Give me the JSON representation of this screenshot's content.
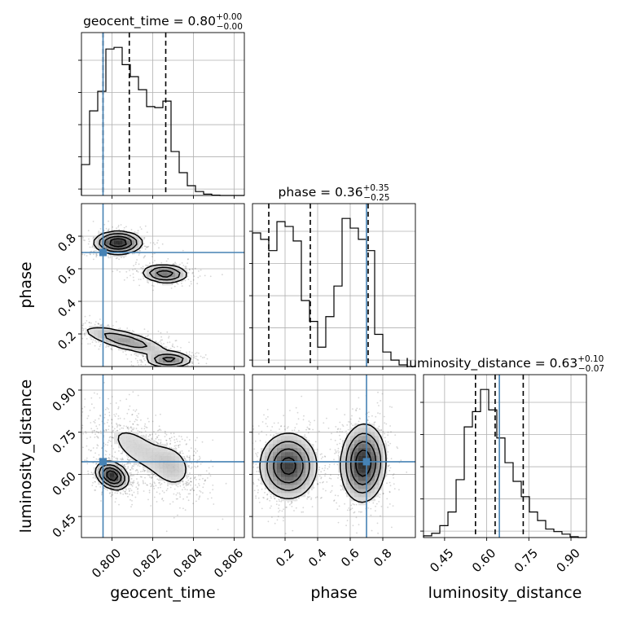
{
  "chart_data": {
    "type": "corner",
    "parameters": [
      {
        "key": "geocent_time",
        "label": "geocent_time",
        "title": {
          "name": "geocent_time",
          "median": "0.80",
          "plus": "+0.00",
          "minus": "−0.00"
        },
        "range": [
          0.7985,
          0.8065
        ],
        "ticks": [
          0.8,
          0.802,
          0.804,
          0.806
        ],
        "tick_labels": [
          "0.800",
          "0.802",
          "0.804",
          "0.806"
        ],
        "quantiles": [
          0.79956,
          0.80085,
          0.80264
        ],
        "truth": 0.79956,
        "hist": {
          "edges": [
            0.7985,
            0.7989,
            0.7993,
            0.7997,
            0.8001,
            0.8005,
            0.8009,
            0.8013,
            0.8017,
            0.8021,
            0.8025,
            0.8029,
            0.8033,
            0.8037,
            0.8041,
            0.8045,
            0.8049,
            0.8053,
            0.8057,
            0.8061,
            0.8065
          ],
          "counts": [
            0.95,
            2.6,
            3.2,
            4.5,
            4.55,
            4.02,
            3.65,
            3.25,
            2.73,
            2.7,
            2.9,
            1.35,
            0.7,
            0.3,
            0.12,
            0.04,
            0.01,
            0,
            0,
            0
          ]
        }
      },
      {
        "key": "phase",
        "label": "phase",
        "title": {
          "name": "phase",
          "median": "0.36",
          "plus": "+0.35",
          "minus": "−0.25"
        },
        "range": [
          0.0,
          1.0
        ],
        "ticks": [
          0.2,
          0.4,
          0.6,
          0.8
        ],
        "tick_labels": [
          "0.2",
          "0.4",
          "0.6",
          "0.8"
        ],
        "quantiles": [
          0.1,
          0.355,
          0.71
        ],
        "truth": 0.7,
        "hist": {
          "edges": [
            0.0,
            0.05,
            0.1,
            0.15,
            0.2,
            0.25,
            0.3,
            0.35,
            0.4,
            0.45,
            0.5,
            0.55,
            0.6,
            0.65,
            0.7,
            0.75,
            0.8,
            0.85,
            0.9,
            0.95,
            1.0
          ],
          "counts": [
            0.83,
            0.79,
            0.72,
            0.9,
            0.87,
            0.78,
            0.41,
            0.28,
            0.12,
            0.31,
            0.5,
            0.92,
            0.86,
            0.79,
            0.72,
            0.2,
            0.09,
            0.04,
            0.01,
            0
          ]
        }
      },
      {
        "key": "luminosity_distance",
        "label": "luminosity_distance",
        "title": {
          "name": "luminosity_distance",
          "median": "0.63",
          "plus": "+0.10",
          "minus": "−0.07"
        },
        "range": [
          0.375,
          0.955
        ],
        "ticks": [
          0.45,
          0.6,
          0.75,
          0.9
        ],
        "tick_labels": [
          "0.45",
          "0.60",
          "0.75",
          "0.90"
        ],
        "quantiles": [
          0.56,
          0.63,
          0.73
        ],
        "truth": 0.645,
        "hist": {
          "edges": [
            0.375,
            0.404,
            0.433,
            0.462,
            0.491,
            0.52,
            0.549,
            0.578,
            0.607,
            0.636,
            0.665,
            0.694,
            0.723,
            0.752,
            0.781,
            0.81,
            0.839,
            0.868,
            0.897,
            0.926,
            0.955
          ],
          "counts": [
            0.02,
            0.05,
            0.14,
            0.3,
            0.68,
            1.3,
            1.48,
            1.74,
            1.5,
            1.17,
            0.88,
            0.66,
            0.48,
            0.3,
            0.2,
            0.1,
            0.07,
            0.04,
            0.01,
            0
          ]
        }
      }
    ],
    "truths": {
      "geocent_time": 0.79956,
      "phase": 0.7,
      "luminosity_distance": 0.645
    },
    "grid": true,
    "colors": {
      "truth": "#4682b4",
      "hist": "#000000",
      "quantile": "#000000",
      "grid": "#b0b0b0",
      "scatter": "#444444"
    },
    "joint": [
      {
        "x": "geocent_time",
        "y": "phase",
        "clusters": [
          {
            "mean": [
              0.8003,
              0.76
            ],
            "sd": [
              0.0006,
              0.035
            ],
            "rho": 0.0,
            "weight": 0.35
          },
          {
            "mean": [
              0.8026,
              0.57
            ],
            "sd": [
              0.0006,
              0.03
            ],
            "rho": -0.1,
            "weight": 0.2
          },
          {
            "mean": [
              0.80065,
              0.16
            ],
            "sd": [
              0.0012,
              0.05
            ],
            "rho": -0.75,
            "weight": 0.3
          },
          {
            "mean": [
              0.8028,
              0.04
            ],
            "sd": [
              0.0006,
              0.025
            ],
            "rho": 0.0,
            "weight": 0.15
          }
        ]
      },
      {
        "x": "geocent_time",
        "y": "luminosity_distance",
        "clusters": [
          {
            "mean": [
              0.8,
              0.595
            ],
            "sd": [
              0.0004,
              0.025
            ],
            "rho": -0.3,
            "weight": 0.35
          },
          {
            "mean": [
              0.8013,
              0.69
            ],
            "sd": [
              0.0012,
              0.07
            ],
            "rho": -0.65,
            "weight": 0.45
          },
          {
            "mean": [
              0.803,
              0.63
            ],
            "sd": [
              0.0006,
              0.05
            ],
            "rho": -0.2,
            "weight": 0.2
          }
        ]
      },
      {
        "x": "phase",
        "y": "luminosity_distance",
        "clusters": [
          {
            "mean": [
              0.22,
              0.63
            ],
            "sd": [
              0.09,
              0.06
            ],
            "rho": 0.0,
            "weight": 0.5
          },
          {
            "mean": [
              0.68,
              0.64
            ],
            "sd": [
              0.07,
              0.07
            ],
            "rho": 0.05,
            "weight": 0.5
          }
        ]
      }
    ]
  }
}
